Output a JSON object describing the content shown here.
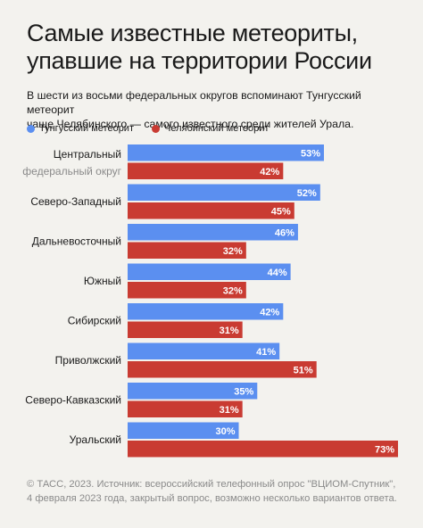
{
  "title_line1": "Самые известные метеориты,",
  "title_line2": "упавшие на территории России",
  "subtitle_line1": "В шести из восьми федеральных округов вспоминают Тунгусский метеорит",
  "subtitle_line2": "чаще Челябинского — самого известного среди жителей Урала.",
  "footer_line1": "© ТАСС, 2023. Источник: всероссийский телефонный опрос \"ВЦИОМ-Спутник\",",
  "footer_line2": "4 февраля 2023 года, закрытый вопрос, возможно несколько вариантов ответа.",
  "colors": {
    "tunguska": "#5b8ff0",
    "chelyabinsk": "#c93b32",
    "background": "#f3f2ee"
  },
  "chart_data": {
    "type": "bar",
    "orientation": "horizontal",
    "categories": [
      [
        "Центральный",
        "федеральный округ"
      ],
      [
        "Северо-Западный"
      ],
      [
        "Дальневосточный"
      ],
      [
        "Южный"
      ],
      [
        "Сибирский"
      ],
      [
        "Приволжский"
      ],
      [
        "Северо-Кавказский"
      ],
      [
        "Уральский"
      ]
    ],
    "series": [
      {
        "name": "Тунгусский метеорит",
        "color": "#5b8ff0",
        "values": [
          53,
          52,
          46,
          44,
          42,
          41,
          35,
          30
        ]
      },
      {
        "name": "Челябинский метеорит",
        "color": "#c93b32",
        "values": [
          42,
          45,
          32,
          32,
          31,
          51,
          31,
          73
        ]
      }
    ],
    "value_suffix": "%",
    "xlim": [
      0,
      73
    ],
    "legend": "top-left",
    "grid": false
  }
}
